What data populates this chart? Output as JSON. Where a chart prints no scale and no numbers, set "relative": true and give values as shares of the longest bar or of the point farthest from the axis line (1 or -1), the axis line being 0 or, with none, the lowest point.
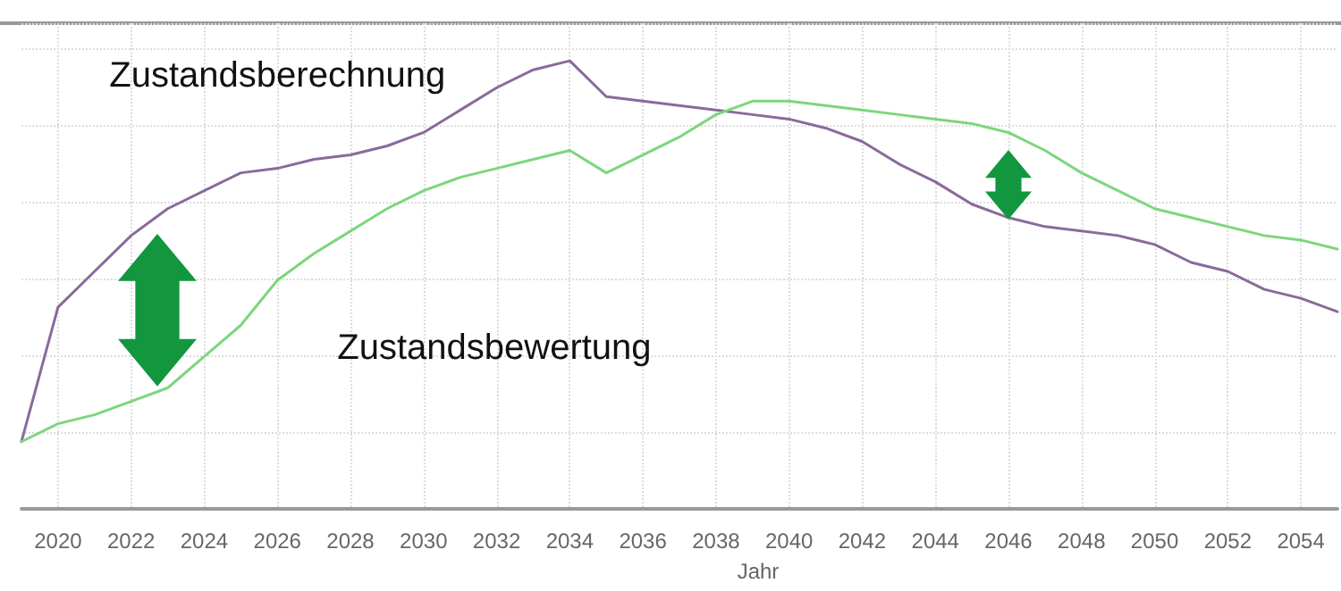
{
  "chart_data": {
    "type": "line",
    "relative": true,
    "xlabel": "Jahr",
    "x": [
      2019,
      2020,
      2021,
      2022,
      2023,
      2024,
      2025,
      2026,
      2027,
      2028,
      2029,
      2030,
      2031,
      2032,
      2033,
      2034,
      2035,
      2036,
      2037,
      2038,
      2039,
      2040,
      2041,
      2042,
      2043,
      2044,
      2045,
      2046,
      2047,
      2048,
      2049,
      2050,
      2051,
      2052,
      2053,
      2054,
      2055
    ],
    "xlim": [
      2019,
      2055
    ],
    "xticks": [
      2020,
      2022,
      2024,
      2026,
      2028,
      2030,
      2032,
      2034,
      2036,
      2038,
      2040,
      2042,
      2044,
      2046,
      2048,
      2050,
      2052,
      2054
    ],
    "series": [
      {
        "name": "Zustandsberechnung",
        "color": "#8a6a9a",
        "values": [
          0.15,
          0.45,
          0.53,
          0.61,
          0.67,
          0.71,
          0.75,
          0.76,
          0.78,
          0.79,
          0.81,
          0.84,
          0.89,
          0.94,
          0.98,
          1,
          0.92,
          0.91,
          0.9,
          0.89,
          0.88,
          0.87,
          0.85,
          0.82,
          0.77,
          0.73,
          0.68,
          0.65,
          0.63,
          0.62,
          0.61,
          0.59,
          0.55,
          0.53,
          0.49,
          0.47,
          0.44
        ]
      },
      {
        "name": "Zustandsbewertung",
        "color": "#7cd67c",
        "values": [
          0.15,
          0.19,
          0.21,
          0.24,
          0.27,
          0.34,
          0.41,
          0.51,
          0.57,
          0.62,
          0.67,
          0.71,
          0.74,
          0.76,
          0.78,
          0.8,
          0.75,
          0.79,
          0.83,
          0.88,
          0.91,
          0.91,
          0.9,
          0.89,
          0.88,
          0.87,
          0.86,
          0.84,
          0.8,
          0.75,
          0.71,
          0.67,
          0.65,
          0.63,
          0.61,
          0.6,
          0.58
        ]
      }
    ],
    "grid": true,
    "legend": false,
    "marker": "none",
    "line_style": "solid"
  }
}
